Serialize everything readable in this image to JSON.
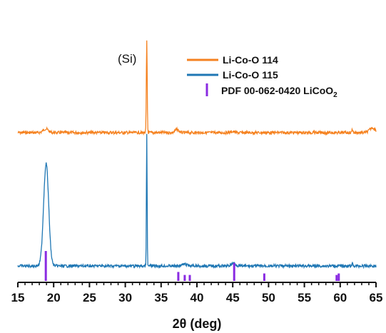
{
  "chart_data": {
    "type": "line",
    "xlabel": "2θ (deg)",
    "xlim": [
      15,
      65
    ],
    "x_ticks": [
      "15",
      "20",
      "25",
      "30",
      "35",
      "40",
      "45",
      "50",
      "55",
      "60",
      "65"
    ],
    "annotation": "(Si)",
    "legend_position": "top-right",
    "series": [
      {
        "name": "Li-Co-O 114",
        "color": "#f58220",
        "baseline": 0.78,
        "peaks": [
          {
            "x": 18.9,
            "h": 0.035,
            "w": 0.35
          },
          {
            "x": 33.0,
            "h": 0.85,
            "w": 0.06
          },
          {
            "x": 37.2,
            "h": 0.03,
            "w": 0.25
          },
          {
            "x": 45.0,
            "h": 0.01,
            "w": 0.25
          },
          {
            "x": 56.3,
            "h": 0.018,
            "w": 0.05
          },
          {
            "x": 61.7,
            "h": 0.035,
            "w": 0.07
          },
          {
            "x": 64.5,
            "h": 0.045,
            "w": 0.4
          }
        ]
      },
      {
        "name": "Li-Co-O 115",
        "color": "#1f77b4",
        "baseline": 0.0,
        "peaks": [
          {
            "x": 18.95,
            "h": 0.9,
            "w": 0.35
          },
          {
            "x": 33.0,
            "h": 1.15,
            "w": 0.05
          },
          {
            "x": 38.3,
            "h": 0.015,
            "w": 0.4
          },
          {
            "x": 45.1,
            "h": 0.025,
            "w": 0.3
          },
          {
            "x": 61.7,
            "h": 0.02,
            "w": 0.06
          }
        ]
      },
      {
        "name": "PDF 00-062-0420 LiCoO",
        "name_subscript": "2",
        "color": "#8a2be2",
        "type": "stick",
        "x": [
          18.9,
          37.4,
          38.3,
          39.0,
          45.2,
          49.4,
          59.5,
          59.8
        ],
        "values": [
          1.0,
          0.3,
          0.2,
          0.2,
          0.6,
          0.25,
          0.2,
          0.25
        ]
      }
    ]
  }
}
